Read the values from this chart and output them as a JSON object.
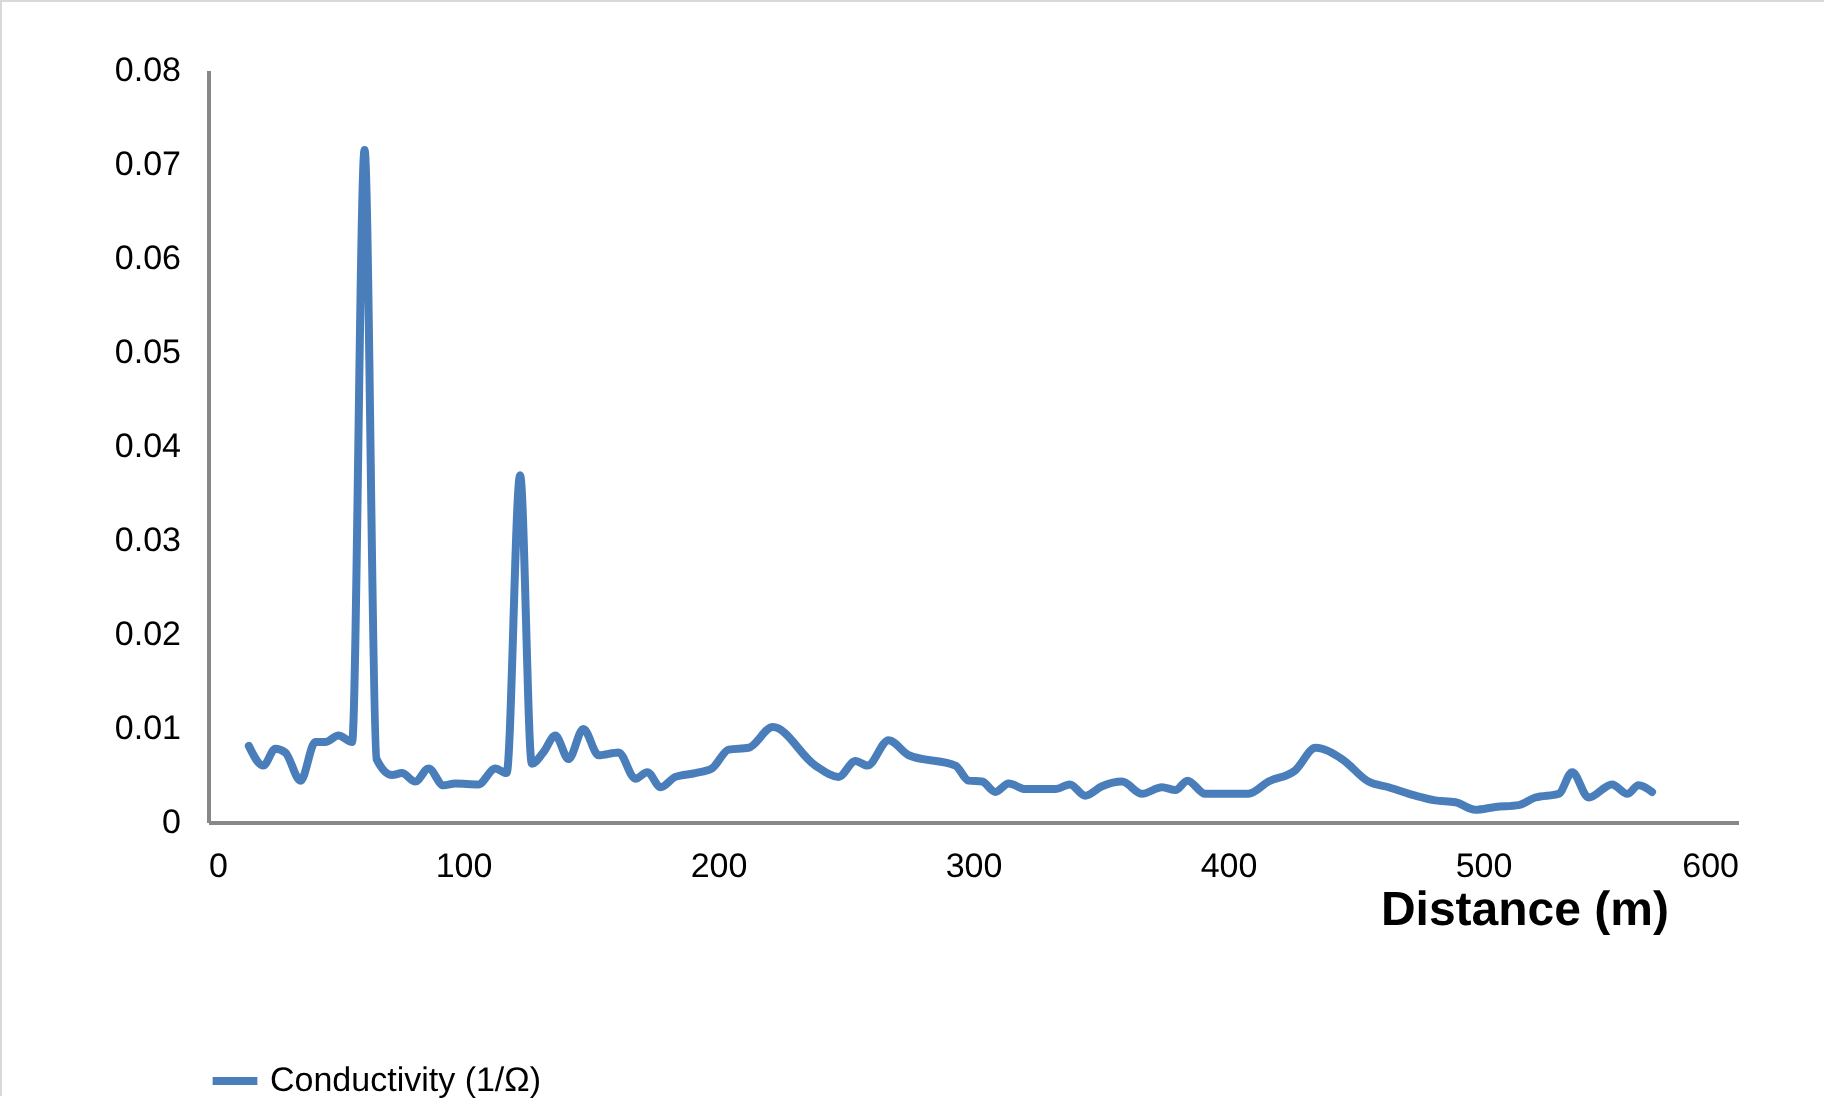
{
  "chart_data": {
    "type": "line",
    "xlabel": "Distance (m)",
    "x": [
      16,
      21.7,
      26.4,
      30.3,
      36.3,
      42.1,
      46,
      51.2,
      56.5,
      61.4,
      66.1,
      72.2,
      76,
      81.3,
      86.5,
      92.3,
      97,
      106,
      112.7,
      117.1,
      122.4,
      127,
      131.5,
      136.2,
      141.4,
      147.2,
      153.2,
      161,
      167.6,
      172.3,
      177.5,
      183.3,
      191.1,
      197.6,
      204.2,
      212,
      221.5,
      238.2,
      247.3,
      253.9,
      258.6,
      266.9,
      274.8,
      293.1,
      298.3,
      303.5,
      308.8,
      314,
      320.5,
      332.3,
      338,
      344,
      350.6,
      358.4,
      366.3,
      374.1,
      379.4,
      384.1,
      391.1,
      408,
      415.9,
      426.4,
      434.3,
      444.7,
      455.1,
      463,
      473.5,
      481.3,
      489.2,
      497,
      504.9,
      514,
      520.5,
      529.7,
      535,
      541.4,
      550.6,
      556.6,
      561,
      566.3
    ],
    "series": [
      {
        "name": "Conductivity (1/Ω)",
        "color": "#4a7ebb",
        "values": [
          0.0081,
          0.006,
          0.0078,
          0.0074,
          0.0044,
          0.0085,
          0.0085,
          0.0092,
          0.0085,
          0.0715,
          0.0067,
          0.005,
          0.0052,
          0.0043,
          0.0057,
          0.0039,
          0.0041,
          0.004,
          0.0057,
          0.0052,
          0.0369,
          0.0062,
          0.0074,
          0.0092,
          0.0067,
          0.0099,
          0.0071,
          0.0074,
          0.0046,
          0.0053,
          0.0037,
          0.0048,
          0.0052,
          0.0057,
          0.0077,
          0.0079,
          0.0101,
          0.006,
          0.0048,
          0.0065,
          0.006,
          0.0087,
          0.0071,
          0.006,
          0.0044,
          0.0043,
          0.0032,
          0.0041,
          0.0035,
          0.0035,
          0.004,
          0.0028,
          0.0038,
          0.0043,
          0.003,
          0.0037,
          0.0034,
          0.0044,
          0.003,
          0.003,
          0.0043,
          0.0055,
          0.0079,
          0.0067,
          0.0043,
          0.0037,
          0.0028,
          0.0023,
          0.0021,
          0.0013,
          0.0016,
          0.0018,
          0.0026,
          0.003,
          0.0053,
          0.0026,
          0.004,
          0.003,
          0.0039,
          0.0032
        ]
      }
    ],
    "xlim": [
      0,
      600
    ],
    "xticks": [
      0,
      100,
      200,
      300,
      400,
      500,
      600
    ],
    "ylim": [
      0,
      0.08
    ],
    "yticks": [
      0,
      0.01,
      0.02,
      0.03,
      0.04,
      0.05,
      0.06,
      0.07,
      0.08
    ],
    "grid": false,
    "legend": "bottom",
    "marker": "none",
    "line_style": "solid"
  }
}
